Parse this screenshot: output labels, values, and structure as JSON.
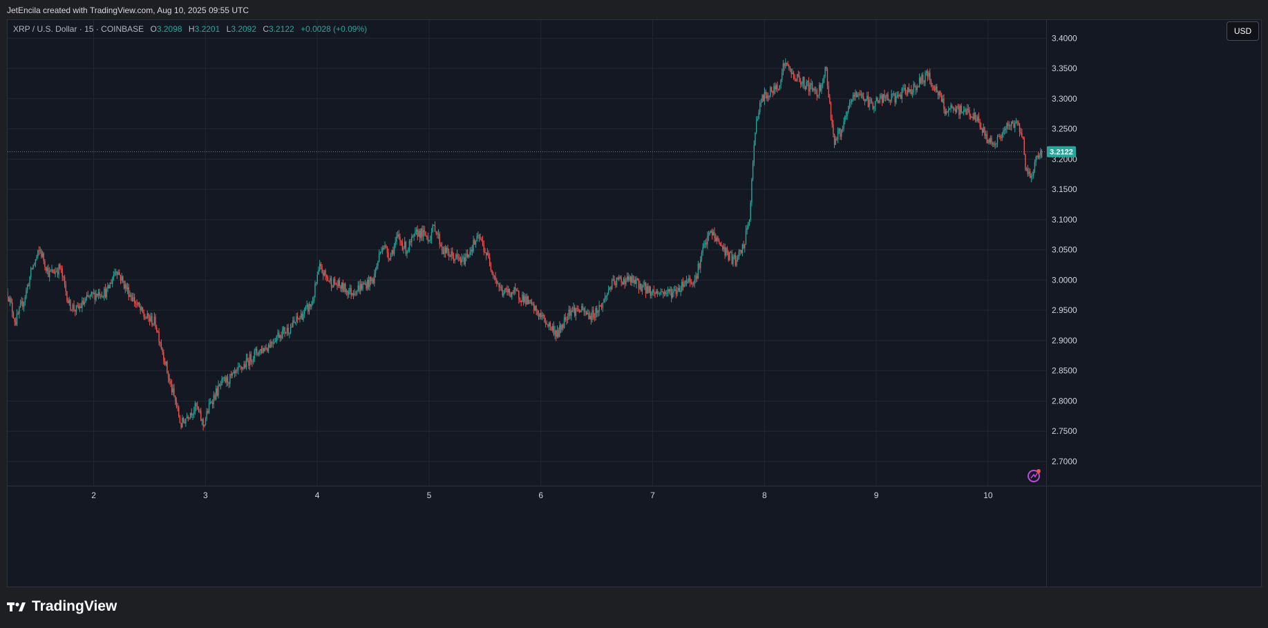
{
  "header": {
    "attribution": "JetEncila created with TradingView.com, Aug 10, 2025 09:55 UTC"
  },
  "legend": {
    "symbol": "XRP / U.S. Dollar · 15 · COINBASE",
    "open_label": "O",
    "open": "3.2098",
    "high_label": "H",
    "high": "3.2201",
    "low_label": "L",
    "low": "3.2092",
    "close_label": "C",
    "close": "3.2122",
    "change": "+0.0028 (+0.09%)"
  },
  "currency_button": "USD",
  "footer": {
    "brand": "TradingView"
  },
  "colors": {
    "up": "#26a69a",
    "down": "#ef5350",
    "background": "#141823",
    "grid": "#232733",
    "last_price_badge": "#26a69a",
    "watermark_icon": "#b74fd6"
  },
  "icons": {
    "brand_logo": "tradingview-logo-icon",
    "watermark": "spark-rocket-icon"
  },
  "chart_data": {
    "type": "candlestick",
    "interval": "15",
    "exchange": "COINBASE",
    "pair": "XRP / U.S. Dollar",
    "x_ticks": [
      "2",
      "3",
      "4",
      "5",
      "6",
      "7",
      "8",
      "9",
      "10"
    ],
    "y_ticks": [
      "2.7000",
      "2.7500",
      "2.8000",
      "2.8500",
      "2.9000",
      "2.9500",
      "3.0000",
      "3.0500",
      "3.1000",
      "3.1500",
      "3.2000",
      "3.2500",
      "3.3000",
      "3.3500",
      "3.4000"
    ],
    "ylim": [
      2.66,
      3.43
    ],
    "xlim": [
      1.23,
      10.52
    ],
    "last_price": "3.2122",
    "last_price_value": 3.2122,
    "grid": true,
    "price_path": [
      [
        1.23,
        2.98
      ],
      [
        1.3,
        2.93
      ],
      [
        1.38,
        2.97
      ],
      [
        1.45,
        3.02
      ],
      [
        1.52,
        3.05
      ],
      [
        1.6,
        3.01
      ],
      [
        1.7,
        3.02
      ],
      [
        1.78,
        2.96
      ],
      [
        1.85,
        2.95
      ],
      [
        1.95,
        2.97
      ],
      [
        2.05,
        2.98
      ],
      [
        2.12,
        2.98
      ],
      [
        2.2,
        3.02
      ],
      [
        2.28,
        2.99
      ],
      [
        2.35,
        2.97
      ],
      [
        2.45,
        2.94
      ],
      [
        2.55,
        2.93
      ],
      [
        2.62,
        2.88
      ],
      [
        2.68,
        2.83
      ],
      [
        2.73,
        2.8
      ],
      [
        2.78,
        2.76
      ],
      [
        2.85,
        2.78
      ],
      [
        2.92,
        2.79
      ],
      [
        2.98,
        2.76
      ],
      [
        3.05,
        2.8
      ],
      [
        3.15,
        2.83
      ],
      [
        3.25,
        2.84
      ],
      [
        3.35,
        2.86
      ],
      [
        3.45,
        2.88
      ],
      [
        3.55,
        2.89
      ],
      [
        3.65,
        2.91
      ],
      [
        3.75,
        2.92
      ],
      [
        3.85,
        2.94
      ],
      [
        3.95,
        2.96
      ],
      [
        4.02,
        3.02
      ],
      [
        4.1,
        3.0
      ],
      [
        4.2,
        2.99
      ],
      [
        4.3,
        2.98
      ],
      [
        4.4,
        2.99
      ],
      [
        4.5,
        3.0
      ],
      [
        4.58,
        3.06
      ],
      [
        4.65,
        3.04
      ],
      [
        4.72,
        3.07
      ],
      [
        4.8,
        3.05
      ],
      [
        4.9,
        3.08
      ],
      [
        5.0,
        3.07
      ],
      [
        5.05,
        3.09
      ],
      [
        5.12,
        3.05
      ],
      [
        5.2,
        3.04
      ],
      [
        5.3,
        3.03
      ],
      [
        5.4,
        3.06
      ],
      [
        5.45,
        3.07
      ],
      [
        5.52,
        3.04
      ],
      [
        5.6,
        3.0
      ],
      [
        5.65,
        2.98
      ],
      [
        5.75,
        2.98
      ],
      [
        5.85,
        2.97
      ],
      [
        5.95,
        2.95
      ],
      [
        6.05,
        2.93
      ],
      [
        6.15,
        2.91
      ],
      [
        6.25,
        2.95
      ],
      [
        6.35,
        2.95
      ],
      [
        6.45,
        2.94
      ],
      [
        6.55,
        2.96
      ],
      [
        6.62,
        2.99
      ],
      [
        6.7,
        3.0
      ],
      [
        6.8,
        3.0
      ],
      [
        6.9,
        2.99
      ],
      [
        7.0,
        2.98
      ],
      [
        7.1,
        2.98
      ],
      [
        7.2,
        2.98
      ],
      [
        7.3,
        3.0
      ],
      [
        7.38,
        3.0
      ],
      [
        7.45,
        3.05
      ],
      [
        7.52,
        3.08
      ],
      [
        7.6,
        3.06
      ],
      [
        7.68,
        3.04
      ],
      [
        7.75,
        3.03
      ],
      [
        7.82,
        3.06
      ],
      [
        7.87,
        3.11
      ],
      [
        7.92,
        3.26
      ],
      [
        7.98,
        3.3
      ],
      [
        8.05,
        3.31
      ],
      [
        8.12,
        3.32
      ],
      [
        8.18,
        3.36
      ],
      [
        8.25,
        3.34
      ],
      [
        8.32,
        3.33
      ],
      [
        8.4,
        3.32
      ],
      [
        8.48,
        3.31
      ],
      [
        8.55,
        3.35
      ],
      [
        8.62,
        3.23
      ],
      [
        8.7,
        3.25
      ],
      [
        8.78,
        3.3
      ],
      [
        8.85,
        3.31
      ],
      [
        8.95,
        3.29
      ],
      [
        9.05,
        3.3
      ],
      [
        9.15,
        3.3
      ],
      [
        9.25,
        3.31
      ],
      [
        9.35,
        3.32
      ],
      [
        9.45,
        3.34
      ],
      [
        9.55,
        3.31
      ],
      [
        9.62,
        3.28
      ],
      [
        9.72,
        3.28
      ],
      [
        9.82,
        3.28
      ],
      [
        9.92,
        3.26
      ],
      [
        10.0,
        3.23
      ],
      [
        10.08,
        3.23
      ],
      [
        10.16,
        3.25
      ],
      [
        10.24,
        3.26
      ],
      [
        10.3,
        3.25
      ],
      [
        10.34,
        3.18
      ],
      [
        10.38,
        3.17
      ],
      [
        10.43,
        3.2
      ],
      [
        10.48,
        3.21
      ]
    ]
  }
}
